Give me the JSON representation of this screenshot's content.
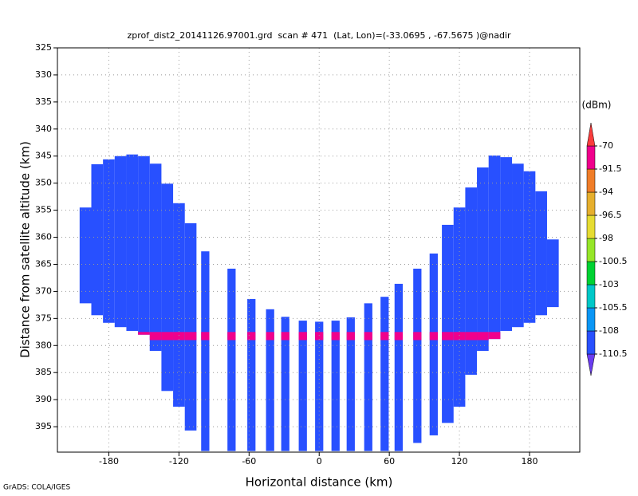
{
  "chart_data": {
    "type": "field",
    "title": "zprof_dist2_20141126.97001.grd  scan # 471  (Lat, Lon)=(-33.0695 , -67.5675 )@nadir",
    "x_label": "Horizontal distance (km)",
    "y_label": "Distance from satellite altitude (km)",
    "footer": "GrADS: COLA/IGES",
    "colorbar_label": "(dBm)",
    "xlim": [
      -224,
      223
    ],
    "ylim": [
      325,
      399.7
    ],
    "y_inverted": true,
    "grid": true,
    "xticks": [
      -180,
      -120,
      -60,
      0,
      60,
      120,
      180
    ],
    "yticks": [
      325,
      330,
      335,
      340,
      345,
      350,
      355,
      360,
      365,
      370,
      375,
      380,
      385,
      390,
      395
    ],
    "levels": [
      -110.5,
      -108,
      -105.5,
      -103,
      -100.5,
      -98,
      -96.5,
      -94,
      -91.5,
      -70
    ],
    "colors": [
      "#6a3cf0",
      "#2850ff",
      "#0a96f5",
      "#00c8c8",
      "#00d232",
      "#96e628",
      "#e6dc32",
      "#e6af2d",
      "#f07d28",
      "#f0008c",
      "#fa3c3c"
    ],
    "base_value": -109,
    "band_top": 377.5,
    "band_bottom": 379,
    "columns": {
      "x": [
        -200,
        -190,
        -180,
        -170,
        -160,
        -150,
        -140,
        -130,
        -120,
        -110,
        -97.5,
        -75,
        -58,
        -42,
        -29,
        -14,
        0,
        14,
        27,
        42,
        56,
        68,
        84,
        98,
        110,
        120,
        130,
        140,
        150,
        160,
        170,
        180,
        190,
        200
      ],
      "width": [
        10,
        10,
        10,
        10,
        10,
        10,
        10,
        10,
        10,
        10,
        7,
        7,
        7,
        7,
        7,
        7,
        7,
        7,
        7,
        7,
        7,
        7,
        7,
        7,
        10,
        10,
        10,
        10,
        10,
        10,
        10,
        10,
        10,
        10
      ],
      "top": [
        354.5,
        346.5,
        345.6,
        345,
        344.7,
        345,
        346.4,
        350.1,
        353.7,
        357.4,
        362.6,
        365.8,
        371.4,
        373.3,
        374.7,
        375.4,
        375.6,
        375.4,
        374.8,
        372.2,
        371,
        368.6,
        365.8,
        363,
        357.7,
        354.5,
        350.8,
        347.1,
        344.9,
        345.2,
        346.4,
        347.8,
        351.5,
        360.4
      ],
      "bottom": [
        372.2,
        374.4,
        375.8,
        376.6,
        377.3,
        378,
        381,
        388.4,
        391.3,
        395.7,
        399.5,
        399.5,
        399.5,
        399.5,
        399.5,
        399.5,
        399.5,
        399.5,
        399.5,
        399.5,
        399.5,
        399.5,
        398,
        396.6,
        394.3,
        391.3,
        385.4,
        381,
        378.8,
        377.3,
        376.6,
        375.8,
        374.4,
        372.9
      ],
      "band": [
        -104,
        -104,
        -104,
        -95,
        -85,
        -80,
        -80,
        -80,
        -88,
        -85,
        -85,
        -85,
        -85,
        -85,
        -85,
        -85,
        -85,
        -85,
        -85,
        -85,
        -85,
        -85,
        -85,
        -85,
        -85,
        -80,
        -80,
        -80,
        -80,
        -95,
        -104,
        -104,
        -104,
        -104
      ]
    }
  }
}
